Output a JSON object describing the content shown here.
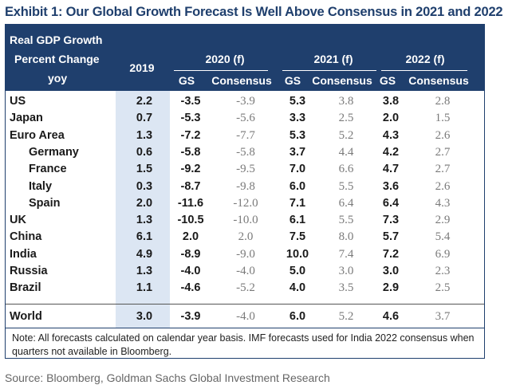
{
  "title": "Exhibit 1: Our Global Growth Forecast Is Well Above Consensus in 2021 and 2022",
  "header": {
    "label_line1": "Real GDP Growth",
    "label_line2": "Percent Change",
    "label_line3": "yoy",
    "col_2019": "2019",
    "group_2020": "2020 (f)",
    "group_2021": "2021 (f)",
    "group_2022": "2022 (f)",
    "gs": "GS",
    "consensus": "Consensus"
  },
  "rows": [
    {
      "name": "US",
      "v2019": "2.2",
      "gs2020": "-3.5",
      "con2020": "-3.9",
      "gs2021": "5.3",
      "con2021": "3.8",
      "gs2022": "3.8",
      "con2022": "2.8"
    },
    {
      "name": "Japan",
      "v2019": "0.7",
      "gs2020": "-5.3",
      "con2020": "-5.6",
      "gs2021": "3.3",
      "con2021": "2.5",
      "gs2022": "2.0",
      "con2022": "1.5"
    },
    {
      "name": "Euro Area",
      "v2019": "1.3",
      "gs2020": "-7.2",
      "con2020": "-7.7",
      "gs2021": "5.3",
      "con2021": "5.2",
      "gs2022": "4.3",
      "con2022": "2.6"
    },
    {
      "name": "Germany",
      "v2019": "0.6",
      "gs2020": "-5.8",
      "con2020": "-5.8",
      "gs2021": "3.7",
      "con2021": "4.4",
      "gs2022": "4.2",
      "con2022": "2.7"
    },
    {
      "name": "France",
      "v2019": "1.5",
      "gs2020": "-9.2",
      "con2020": "-9.5",
      "gs2021": "7.0",
      "con2021": "6.6",
      "gs2022": "4.7",
      "con2022": "2.7"
    },
    {
      "name": "Italy",
      "v2019": "0.3",
      "gs2020": "-8.7",
      "con2020": "-9.8",
      "gs2021": "6.0",
      "con2021": "5.5",
      "gs2022": "3.6",
      "con2022": "2.6"
    },
    {
      "name": "Spain",
      "v2019": "2.0",
      "gs2020": "-11.6",
      "con2020": "-12.0",
      "gs2021": "7.1",
      "con2021": "6.4",
      "gs2022": "6.4",
      "con2022": "4.3"
    },
    {
      "name": "UK",
      "v2019": "1.3",
      "gs2020": "-10.5",
      "con2020": "-10.0",
      "gs2021": "6.1",
      "con2021": "5.5",
      "gs2022": "7.3",
      "con2022": "2.9"
    },
    {
      "name": "China",
      "v2019": "6.1",
      "gs2020": "2.0",
      "con2020": "2.0",
      "gs2021": "7.5",
      "con2021": "8.0",
      "gs2022": "5.7",
      "con2022": "5.4"
    },
    {
      "name": "India",
      "v2019": "4.9",
      "gs2020": "-8.9",
      "con2020": "-9.0",
      "gs2021": "10.0",
      "con2021": "7.4",
      "gs2022": "7.2",
      "con2022": "6.9"
    },
    {
      "name": "Russia",
      "v2019": "1.3",
      "gs2020": "-4.0",
      "con2020": "-4.0",
      "gs2021": "5.0",
      "con2021": "3.0",
      "gs2022": "3.0",
      "con2022": "2.3"
    },
    {
      "name": "Brazil",
      "v2019": "1.1",
      "gs2020": "-4.6",
      "con2020": "-5.2",
      "gs2021": "4.0",
      "con2021": "3.5",
      "gs2022": "2.9",
      "con2022": "2.5"
    }
  ],
  "world": {
    "name": "World",
    "v2019": "3.0",
    "gs2020": "-3.9",
    "con2020": "-4.0",
    "gs2021": "6.0",
    "con2021": "5.2",
    "gs2022": "4.6",
    "con2022": "3.7"
  },
  "note": "Note: All forecasts calculated on calendar year basis. IMF forecasts used for India 2022 consensus when quarters not available in Bloomberg.",
  "source": "Source: Bloomberg, Goldman Sachs Global Investment Research",
  "colors": {
    "header_bg": "#1f3f6d",
    "highlight": "#dce6f3",
    "consensus_text": "#7a7a7a"
  }
}
